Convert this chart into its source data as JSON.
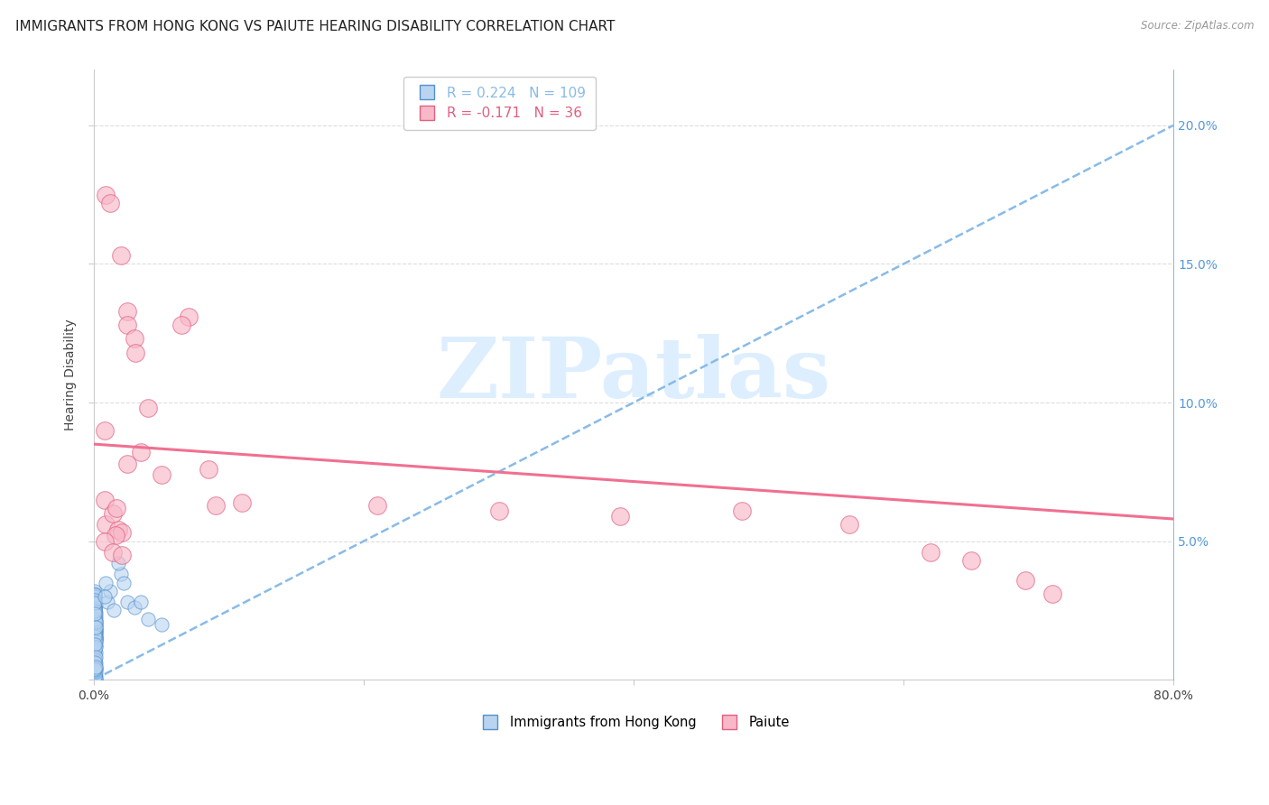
{
  "title": "IMMIGRANTS FROM HONG KONG VS PAIUTE HEARING DISABILITY CORRELATION CHART",
  "source": "Source: ZipAtlas.com",
  "ylabel": "Hearing Disability",
  "xlim": [
    0.0,
    0.8
  ],
  "ylim": [
    0.0,
    0.22
  ],
  "yticks": [
    0.0,
    0.05,
    0.1,
    0.15,
    0.2
  ],
  "ytick_right_labels": [
    "",
    "5.0%",
    "10.0%",
    "15.0%",
    "20.0%"
  ],
  "xticks": [
    0.0,
    0.2,
    0.4,
    0.6,
    0.8
  ],
  "xtick_labels": [
    "0.0%",
    "",
    "",
    "",
    "80.0%"
  ],
  "hk_R": 0.224,
  "hk_N": 109,
  "paiute_R": -0.171,
  "paiute_N": 36,
  "hk_label": "Immigrants from Hong Kong",
  "paiute_label": "Paiute",
  "hk_scatter_color": "#b8d4f0",
  "hk_edge_color": "#5590cc",
  "paiute_scatter_color": "#f8b8c8",
  "paiute_edge_color": "#e06080",
  "hk_line_color": "#88bbe8",
  "paiute_line_color": "#f07090",
  "right_axis_color": "#5599dd",
  "background_color": "#ffffff",
  "grid_color": "#dddddd",
  "title_color": "#222222",
  "watermark": "ZIPatlas",
  "watermark_color": "#ddeeff",
  "title_fontsize": 11,
  "label_fontsize": 10,
  "hk_scatter_x": [
    0.0005,
    0.0008,
    0.001,
    0.0012,
    0.0006,
    0.0009,
    0.0007,
    0.0011,
    0.0015,
    0.0013,
    0.0008,
    0.001,
    0.0006,
    0.0009,
    0.0011,
    0.0007,
    0.0005,
    0.0012,
    0.0014,
    0.001,
    0.0008,
    0.0006,
    0.0009,
    0.0011,
    0.0013,
    0.0007,
    0.0005,
    0.001,
    0.0008,
    0.0012,
    0.0009,
    0.0006,
    0.0011,
    0.0014,
    0.0007,
    0.001,
    0.0008,
    0.0013,
    0.0006,
    0.0009,
    0.0011,
    0.0005,
    0.0007,
    0.0012,
    0.001,
    0.0008,
    0.0015,
    0.0009,
    0.0006,
    0.0013,
    0.0011,
    0.0007,
    0.001,
    0.0008,
    0.0012,
    0.0005,
    0.0009,
    0.0014,
    0.0006,
    0.0011,
    0.0008,
    0.001,
    0.0007,
    0.0013,
    0.0012,
    0.0009,
    0.0006,
    0.0011,
    0.0008,
    0.001,
    0.0005,
    0.0007,
    0.0013,
    0.0009,
    0.0011,
    0.0006,
    0.0008,
    0.0012,
    0.001,
    0.0007,
    0.0015,
    0.0009,
    0.0011,
    0.0006,
    0.0008,
    0.0013,
    0.001,
    0.0007,
    0.0005,
    0.0012,
    0.0009,
    0.0011,
    0.0006,
    0.0008,
    0.0014,
    0.01,
    0.012,
    0.009,
    0.015,
    0.008,
    0.02,
    0.018,
    0.025,
    0.03,
    0.022,
    0.04,
    0.035,
    0.05
  ],
  "hk_scatter_y": [
    0.022,
    0.018,
    0.026,
    0.015,
    0.03,
    0.023,
    0.019,
    0.027,
    0.02,
    0.016,
    0.024,
    0.028,
    0.013,
    0.021,
    0.017,
    0.025,
    0.032,
    0.014,
    0.018,
    0.022,
    0.026,
    0.031,
    0.019,
    0.015,
    0.023,
    0.027,
    0.029,
    0.016,
    0.02,
    0.024,
    0.012,
    0.028,
    0.021,
    0.017,
    0.025,
    0.03,
    0.014,
    0.018,
    0.022,
    0.026,
    0.0195,
    0.0135,
    0.0275,
    0.0155,
    0.0205,
    0.0245,
    0.0185,
    0.0165,
    0.0305,
    0.0125,
    0.0215,
    0.0255,
    0.0178,
    0.0218,
    0.0148,
    0.0288,
    0.0168,
    0.0208,
    0.0248,
    0.0138,
    0.0278,
    0.0158,
    0.0238,
    0.0188,
    0.0058,
    0.0078,
    0.0048,
    0.0038,
    0.0068,
    0.0028,
    0.0018,
    0.0088,
    0.0098,
    0.0108,
    0.0118,
    0.0128,
    0.0052,
    0.0042,
    0.0032,
    0.0072,
    0.0082,
    0.0062,
    0.0002,
    0.0008,
    0.0012,
    0.0015,
    0.0005,
    0.002,
    0.0025,
    0.0003,
    0.001,
    0.003,
    0.0035,
    0.004,
    0.0045,
    0.028,
    0.032,
    0.035,
    0.025,
    0.03,
    0.038,
    0.042,
    0.028,
    0.026,
    0.035,
    0.022,
    0.028,
    0.02
  ],
  "paiute_scatter_x": [
    0.009,
    0.012,
    0.02,
    0.025,
    0.025,
    0.03,
    0.031,
    0.04,
    0.008,
    0.07,
    0.065,
    0.085,
    0.11,
    0.09,
    0.008,
    0.025,
    0.035,
    0.05,
    0.009,
    0.018,
    0.021,
    0.014,
    0.017,
    0.21,
    0.3,
    0.39,
    0.48,
    0.016,
    0.008,
    0.56,
    0.62,
    0.65,
    0.69,
    0.71,
    0.014,
    0.021
  ],
  "paiute_scatter_y": [
    0.175,
    0.172,
    0.153,
    0.133,
    0.128,
    0.123,
    0.118,
    0.098,
    0.09,
    0.131,
    0.128,
    0.076,
    0.064,
    0.063,
    0.065,
    0.078,
    0.082,
    0.074,
    0.056,
    0.054,
    0.053,
    0.06,
    0.062,
    0.063,
    0.061,
    0.059,
    0.061,
    0.052,
    0.05,
    0.056,
    0.046,
    0.043,
    0.036,
    0.031,
    0.046,
    0.045
  ],
  "hk_trendline_x": [
    0.0,
    0.8
  ],
  "hk_trendline_y": [
    0.0,
    0.2
  ],
  "paiute_trendline_x": [
    0.0,
    0.8
  ],
  "paiute_trendline_y": [
    0.085,
    0.058
  ]
}
